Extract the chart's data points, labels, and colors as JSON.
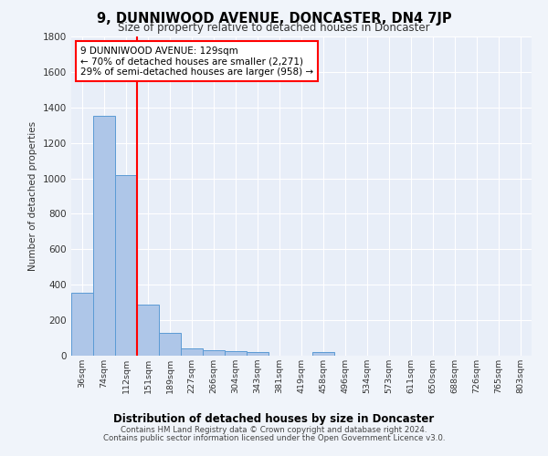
{
  "title": "9, DUNNIWOOD AVENUE, DONCASTER, DN4 7JP",
  "subtitle": "Size of property relative to detached houses in Doncaster",
  "xlabel": "Distribution of detached houses by size in Doncaster",
  "ylabel": "Number of detached properties",
  "categories": [
    "36sqm",
    "74sqm",
    "112sqm",
    "151sqm",
    "189sqm",
    "227sqm",
    "266sqm",
    "304sqm",
    "343sqm",
    "381sqm",
    "419sqm",
    "458sqm",
    "496sqm",
    "534sqm",
    "573sqm",
    "611sqm",
    "650sqm",
    "688sqm",
    "726sqm",
    "765sqm",
    "803sqm"
  ],
  "values": [
    355,
    1355,
    1020,
    290,
    130,
    40,
    30,
    25,
    20,
    0,
    0,
    20,
    0,
    0,
    0,
    0,
    0,
    0,
    0,
    0,
    0
  ],
  "bar_color": "#aec6e8",
  "bar_edge_color": "#5b9bd5",
  "bar_width": 1.0,
  "red_line_x": 2.5,
  "annotation_text": "9 DUNNIWOOD AVENUE: 129sqm\n← 70% of detached houses are smaller (2,271)\n29% of semi-detached houses are larger (958) →",
  "annotation_box_color": "white",
  "annotation_box_edge": "red",
  "ylim": [
    0,
    1800
  ],
  "yticks": [
    0,
    200,
    400,
    600,
    800,
    1000,
    1200,
    1400,
    1600,
    1800
  ],
  "bg_color": "#f0f4fa",
  "plot_bg_color": "#e8eef8",
  "grid_color": "white",
  "footer_line1": "Contains HM Land Registry data © Crown copyright and database right 2024.",
  "footer_line2": "Contains public sector information licensed under the Open Government Licence v3.0."
}
